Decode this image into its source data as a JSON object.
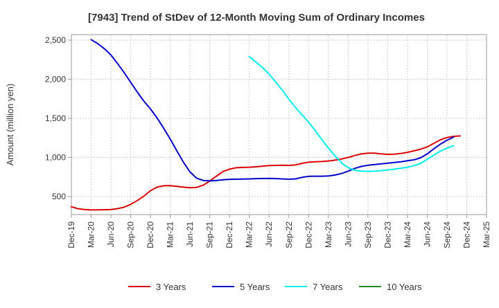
{
  "chart_data": {
    "type": "line",
    "title": "[7943]  Trend of StDev of 12-Month Moving Sum of Ordinary Incomes",
    "xlabel": "",
    "ylabel": "Amount (million yen)",
    "ylim": [
      270,
      2570
    ],
    "yticks": [
      500,
      1000,
      1500,
      2000,
      2500
    ],
    "ytick_labels": [
      "500",
      "1,000",
      "1,500",
      "2,000",
      "2,500"
    ],
    "xticks": [
      "2019-12",
      "2020-03",
      "2020-06",
      "2020-09",
      "2020-12",
      "2021-03",
      "2021-06",
      "2021-09",
      "2021-12",
      "2022-03",
      "2022-06",
      "2022-09",
      "2022-12",
      "2023-03",
      "2023-06",
      "2023-09",
      "2023-12",
      "2024-03",
      "2024-06",
      "2024-09",
      "2024-12",
      "2025-03"
    ],
    "xtick_labels": [
      "Dec-19",
      "Mar-20",
      "Jun-20",
      "Sep-20",
      "Dec-20",
      "Mar-21",
      "Jun-21",
      "Sep-21",
      "Dec-21",
      "Mar-22",
      "Jun-22",
      "Sep-22",
      "Dec-22",
      "Mar-23",
      "Jun-23",
      "Sep-23",
      "Dec-23",
      "Mar-24",
      "Jun-24",
      "Sep-24",
      "Dec-24",
      "Mar-25"
    ],
    "grid": true,
    "legend": "bottom",
    "series": [
      {
        "name": "3 Years",
        "color": "#dd0000",
        "points": [
          [
            "2019-12",
            370
          ],
          [
            "2020-01",
            345
          ],
          [
            "2020-02",
            335
          ],
          [
            "2020-03",
            330
          ],
          [
            "2020-04",
            330
          ],
          [
            "2020-05",
            332
          ],
          [
            "2020-06",
            335
          ],
          [
            "2020-07",
            345
          ],
          [
            "2020-08",
            365
          ],
          [
            "2020-09",
            400
          ],
          [
            "2020-10",
            450
          ],
          [
            "2020-11",
            505
          ],
          [
            "2020-12",
            575
          ],
          [
            "2021-01",
            620
          ],
          [
            "2021-02",
            638
          ],
          [
            "2021-03",
            640
          ],
          [
            "2021-04",
            630
          ],
          [
            "2021-05",
            620
          ],
          [
            "2021-06",
            612
          ],
          [
            "2021-07",
            618
          ],
          [
            "2021-08",
            645
          ],
          [
            "2021-09",
            700
          ],
          [
            "2021-10",
            760
          ],
          [
            "2021-11",
            820
          ],
          [
            "2021-12",
            850
          ],
          [
            "2022-01",
            868
          ],
          [
            "2022-02",
            872
          ],
          [
            "2022-03",
            875
          ],
          [
            "2022-04",
            880
          ],
          [
            "2022-05",
            888
          ],
          [
            "2022-06",
            895
          ],
          [
            "2022-07",
            898
          ],
          [
            "2022-08",
            900
          ],
          [
            "2022-09",
            898
          ],
          [
            "2022-10",
            905
          ],
          [
            "2022-11",
            925
          ],
          [
            "2022-12",
            940
          ],
          [
            "2023-01",
            945
          ],
          [
            "2023-02",
            948
          ],
          [
            "2023-03",
            955
          ],
          [
            "2023-04",
            965
          ],
          [
            "2023-05",
            980
          ],
          [
            "2023-06",
            1000
          ],
          [
            "2023-07",
            1025
          ],
          [
            "2023-08",
            1045
          ],
          [
            "2023-09",
            1055
          ],
          [
            "2023-10",
            1055
          ],
          [
            "2023-11",
            1045
          ],
          [
            "2023-12",
            1040
          ],
          [
            "2024-01",
            1042
          ],
          [
            "2024-02",
            1050
          ],
          [
            "2024-03",
            1065
          ],
          [
            "2024-04",
            1085
          ],
          [
            "2024-05",
            1105
          ],
          [
            "2024-06",
            1135
          ],
          [
            "2024-07",
            1180
          ],
          [
            "2024-08",
            1225
          ],
          [
            "2024-09",
            1255
          ],
          [
            "2024-10",
            1270
          ],
          [
            "2024-11",
            1275
          ]
        ]
      },
      {
        "name": "5 Years",
        "color": "#0000cc",
        "points": [
          [
            "2020-03",
            2505
          ],
          [
            "2020-04",
            2455
          ],
          [
            "2020-05",
            2390
          ],
          [
            "2020-06",
            2310
          ],
          [
            "2020-07",
            2200
          ],
          [
            "2020-08",
            2085
          ],
          [
            "2020-09",
            1960
          ],
          [
            "2020-10",
            1835
          ],
          [
            "2020-11",
            1720
          ],
          [
            "2020-12",
            1620
          ],
          [
            "2021-01",
            1505
          ],
          [
            "2021-02",
            1375
          ],
          [
            "2021-03",
            1235
          ],
          [
            "2021-04",
            1085
          ],
          [
            "2021-05",
            940
          ],
          [
            "2021-06",
            815
          ],
          [
            "2021-07",
            735
          ],
          [
            "2021-08",
            705
          ],
          [
            "2021-09",
            700
          ],
          [
            "2021-10",
            705
          ],
          [
            "2021-11",
            715
          ],
          [
            "2021-12",
            720
          ],
          [
            "2022-01",
            722
          ],
          [
            "2022-02",
            724
          ],
          [
            "2022-03",
            726
          ],
          [
            "2022-04",
            729
          ],
          [
            "2022-05",
            731
          ],
          [
            "2022-06",
            733
          ],
          [
            "2022-07",
            730
          ],
          [
            "2022-08",
            726
          ],
          [
            "2022-09",
            722
          ],
          [
            "2022-10",
            726
          ],
          [
            "2022-11",
            745
          ],
          [
            "2022-12",
            758
          ],
          [
            "2023-01",
            760
          ],
          [
            "2023-02",
            760
          ],
          [
            "2023-03",
            764
          ],
          [
            "2023-04",
            775
          ],
          [
            "2023-05",
            795
          ],
          [
            "2023-06",
            825
          ],
          [
            "2023-07",
            860
          ],
          [
            "2023-08",
            885
          ],
          [
            "2023-09",
            900
          ],
          [
            "2023-10",
            910
          ],
          [
            "2023-11",
            918
          ],
          [
            "2023-12",
            926
          ],
          [
            "2024-01",
            935
          ],
          [
            "2024-02",
            945
          ],
          [
            "2024-03",
            957
          ],
          [
            "2024-04",
            970
          ],
          [
            "2024-05",
            995
          ],
          [
            "2024-06",
            1045
          ],
          [
            "2024-07",
            1110
          ],
          [
            "2024-08",
            1170
          ],
          [
            "2024-09",
            1220
          ],
          [
            "2024-10",
            1260
          ]
        ]
      },
      {
        "name": "7 Years",
        "color": "#00eeee",
        "points": [
          [
            "2022-03",
            2290
          ],
          [
            "2022-04",
            2220
          ],
          [
            "2022-05",
            2150
          ],
          [
            "2022-06",
            2065
          ],
          [
            "2022-07",
            1965
          ],
          [
            "2022-08",
            1860
          ],
          [
            "2022-09",
            1745
          ],
          [
            "2022-10",
            1640
          ],
          [
            "2022-11",
            1545
          ],
          [
            "2022-12",
            1450
          ],
          [
            "2023-01",
            1345
          ],
          [
            "2023-02",
            1230
          ],
          [
            "2023-03",
            1120
          ],
          [
            "2023-04",
            1020
          ],
          [
            "2023-05",
            930
          ],
          [
            "2023-06",
            870
          ],
          [
            "2023-07",
            835
          ],
          [
            "2023-08",
            825
          ],
          [
            "2023-09",
            822
          ],
          [
            "2023-10",
            825
          ],
          [
            "2023-11",
            832
          ],
          [
            "2023-12",
            840
          ],
          [
            "2024-01",
            850
          ],
          [
            "2024-02",
            862
          ],
          [
            "2024-03",
            875
          ],
          [
            "2024-04",
            895
          ],
          [
            "2024-05",
            925
          ],
          [
            "2024-06",
            975
          ],
          [
            "2024-07",
            1030
          ],
          [
            "2024-08",
            1080
          ],
          [
            "2024-09",
            1120
          ],
          [
            "2024-10",
            1150
          ]
        ]
      },
      {
        "name": "10 Years",
        "color": "#228822",
        "points": []
      }
    ]
  }
}
